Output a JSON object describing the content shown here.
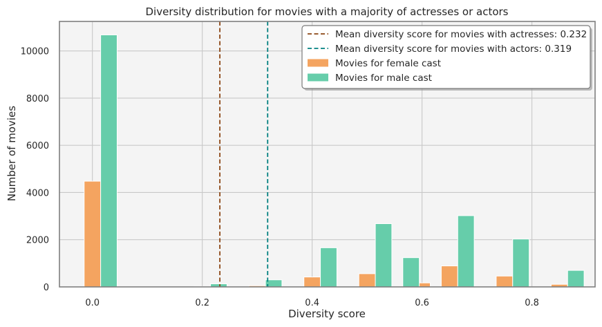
{
  "chart_data": {
    "type": "bar",
    "title": "Diversity distribution for movies with a majority of actresses or actors",
    "xlabel": "Diversity score",
    "ylabel": "Number of movies",
    "xlim": [
      -0.06,
      0.915
    ],
    "ylim": [
      0,
      11250
    ],
    "xticks": [
      0.0,
      0.2,
      0.4,
      0.6,
      0.8
    ],
    "xtick_labels": [
      "0.0",
      "0.2",
      "0.4",
      "0.6",
      "0.8"
    ],
    "yticks": [
      0,
      2000,
      4000,
      6000,
      8000,
      10000
    ],
    "ytick_labels": [
      "0",
      "2000",
      "4000",
      "6000",
      "8000",
      "10000"
    ],
    "grid": true,
    "legend_position": "top-right",
    "bar_width": 0.03,
    "series": [
      {
        "name": "Movies for female cast",
        "color": "#f4a460",
        "x": [
          0.0,
          0.2,
          0.3,
          0.4,
          0.5,
          0.6,
          0.65,
          0.75,
          0.85
        ],
        "values": [
          4480,
          20,
          50,
          420,
          560,
          170,
          890,
          460,
          110
        ]
      },
      {
        "name": "Movies for male cast",
        "color": "#66cdaa",
        "x": [
          0.03,
          0.23,
          0.33,
          0.43,
          0.53,
          0.58,
          0.68,
          0.78,
          0.88
        ],
        "values": [
          10680,
          130,
          300,
          1660,
          2680,
          1240,
          3020,
          2030,
          700
        ]
      }
    ],
    "reference_lines": [
      {
        "name": "Mean diversity score for movies with actresses: 0.232",
        "x": 0.232,
        "color": "#8b4513"
      },
      {
        "name": "Mean diversity score for movies with actors: 0.319",
        "x": 0.319,
        "color": "#008080"
      }
    ]
  }
}
